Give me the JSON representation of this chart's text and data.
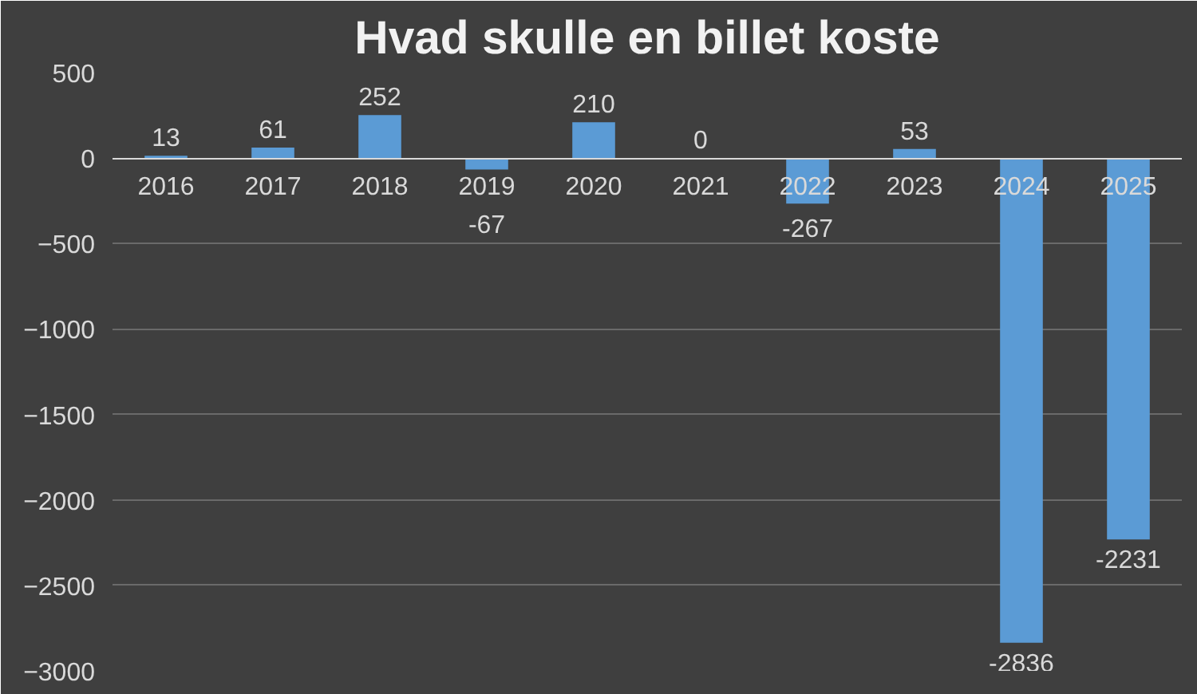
{
  "chart_data": {
    "type": "bar",
    "title": "Hvad skulle en billet koste",
    "categories": [
      "2016",
      "2017",
      "2018",
      "2019",
      "2020",
      "2021",
      "2022",
      "2023",
      "2024",
      "2025"
    ],
    "values": [
      13,
      61,
      252,
      -67,
      210,
      0,
      -267,
      53,
      -2836,
      -2231
    ],
    "color": "#5b9bd5",
    "ylim": [
      -3000,
      500
    ],
    "yticks": [
      -3000,
      -2500,
      -2000,
      -1500,
      -1000,
      -500,
      0,
      500
    ],
    "grid": "y",
    "data_labels": true
  }
}
